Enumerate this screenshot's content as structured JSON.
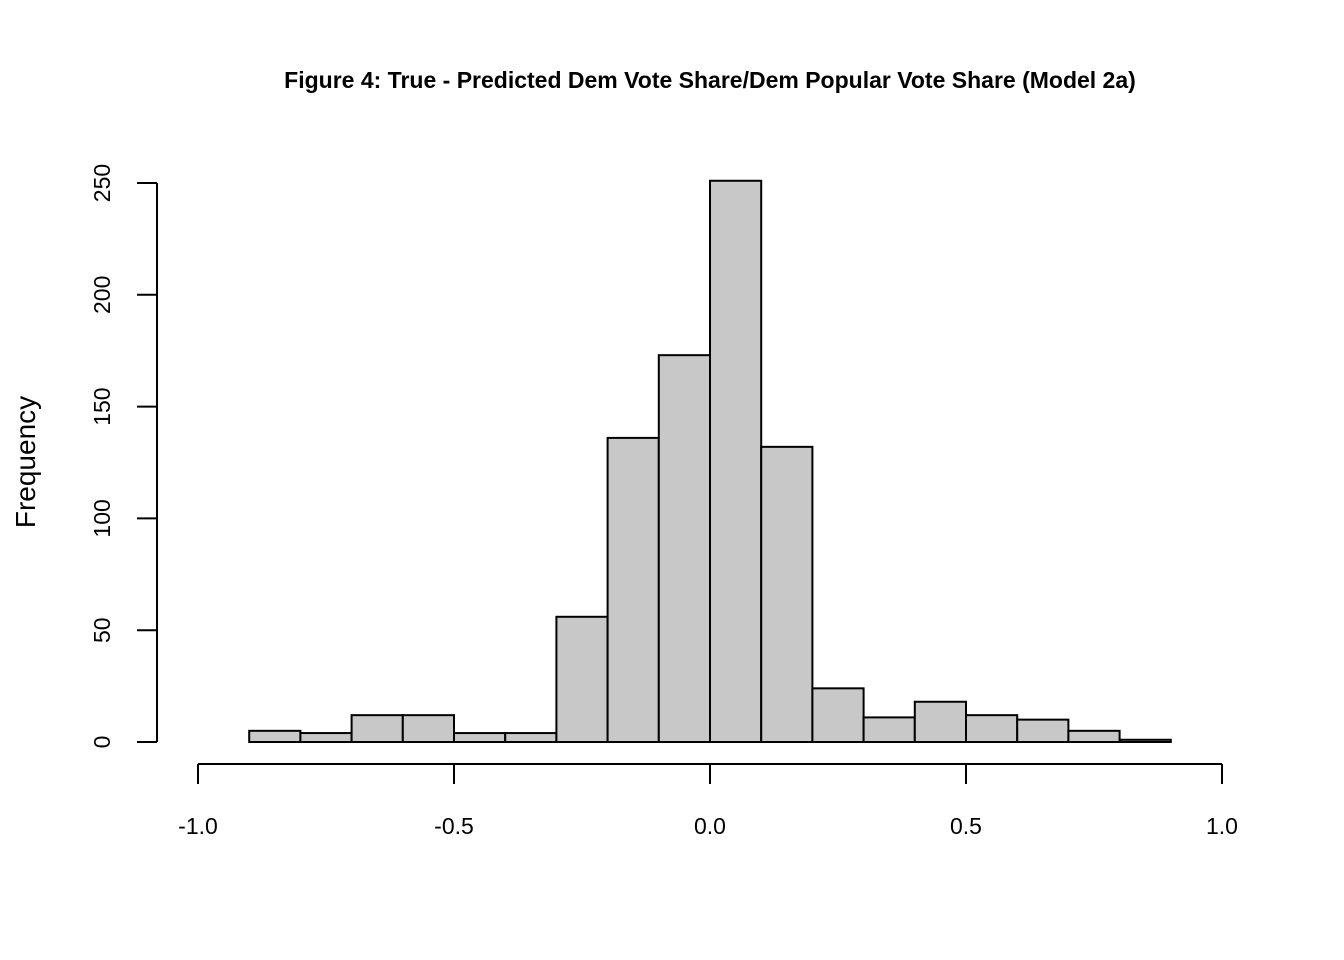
{
  "chart_data": {
    "type": "bar",
    "title": "Figure 4: True - Predicted Dem Vote Share/Dem Popular Vote Share (Model 2a)",
    "xlabel": "",
    "ylabel": "Frequency",
    "bin_width": 0.1,
    "bins": [
      {
        "x0": -0.9,
        "x1": -0.8,
        "count": 5
      },
      {
        "x0": -0.8,
        "x1": -0.7,
        "count": 4
      },
      {
        "x0": -0.7,
        "x1": -0.6,
        "count": 12
      },
      {
        "x0": -0.6,
        "x1": -0.5,
        "count": 12
      },
      {
        "x0": -0.5,
        "x1": -0.4,
        "count": 4
      },
      {
        "x0": -0.4,
        "x1": -0.3,
        "count": 4
      },
      {
        "x0": -0.3,
        "x1": -0.2,
        "count": 56
      },
      {
        "x0": -0.2,
        "x1": -0.1,
        "count": 136
      },
      {
        "x0": -0.1,
        "x1": 0.0,
        "count": 173
      },
      {
        "x0": 0.0,
        "x1": 0.1,
        "count": 251
      },
      {
        "x0": 0.1,
        "x1": 0.2,
        "count": 132
      },
      {
        "x0": 0.2,
        "x1": 0.3,
        "count": 24
      },
      {
        "x0": 0.3,
        "x1": 0.4,
        "count": 11
      },
      {
        "x0": 0.4,
        "x1": 0.5,
        "count": 18
      },
      {
        "x0": 0.5,
        "x1": 0.6,
        "count": 12
      },
      {
        "x0": 0.6,
        "x1": 0.7,
        "count": 10
      },
      {
        "x0": 0.7,
        "x1": 0.8,
        "count": 5
      },
      {
        "x0": 0.8,
        "x1": 0.9,
        "count": 1
      }
    ],
    "xlim": [
      -1.0,
      1.0
    ],
    "ylim": [
      0,
      250
    ],
    "x_ticks": [
      -1.0,
      -0.5,
      0.0,
      0.5,
      1.0
    ],
    "x_tick_labels": [
      "-1.0",
      "-0.5",
      "0.0",
      "0.5",
      "1.0"
    ],
    "y_ticks": [
      0,
      50,
      100,
      150,
      200,
      250
    ],
    "y_tick_labels": [
      "0",
      "50",
      "100",
      "150",
      "200",
      "250"
    ],
    "grid": false,
    "bar_color": "#c8c8c8",
    "edge_color": "#000000"
  }
}
